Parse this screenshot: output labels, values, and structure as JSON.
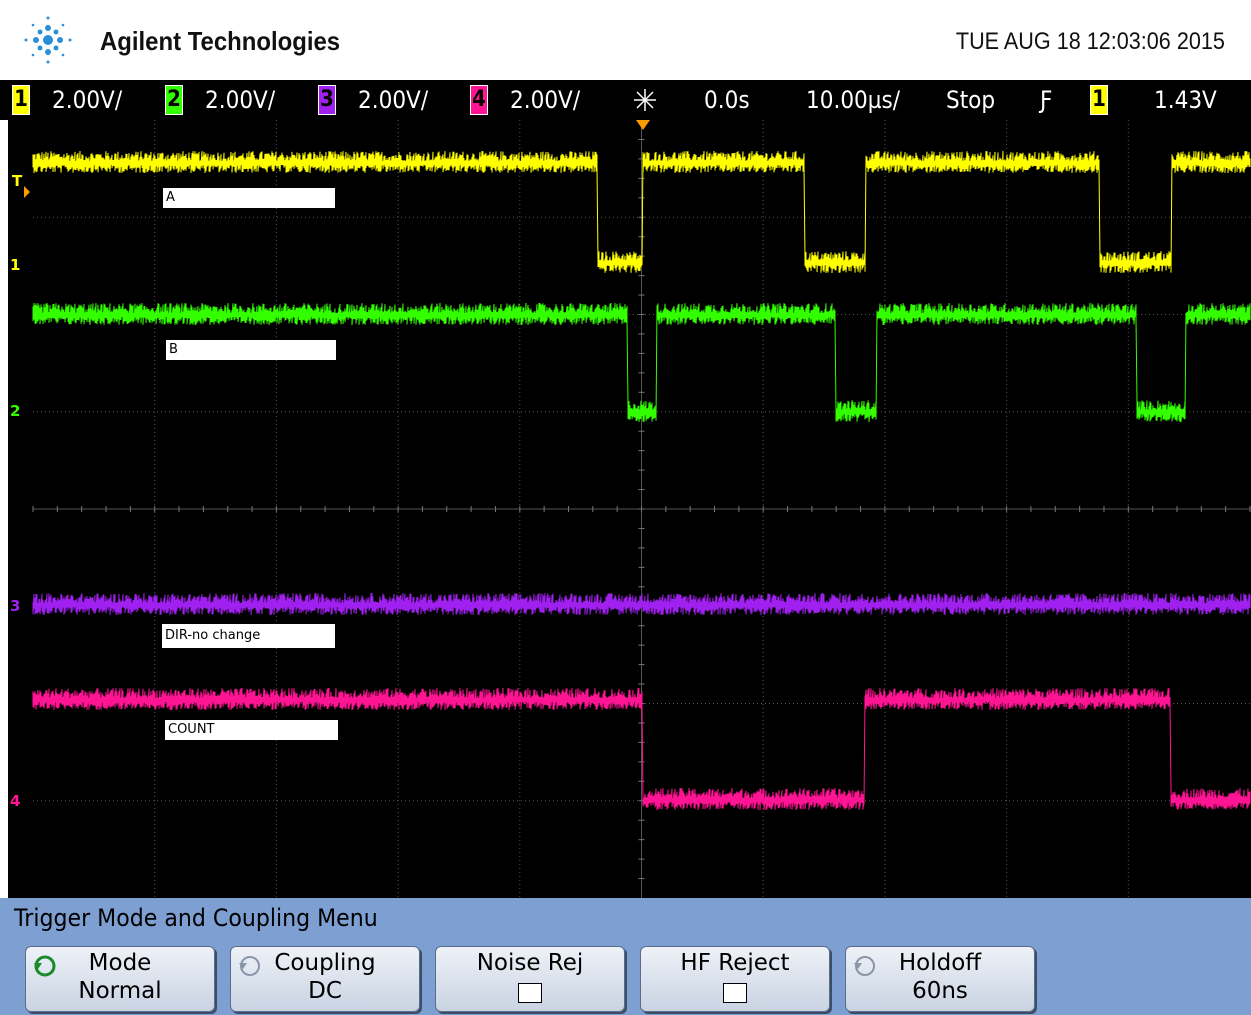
{
  "header": {
    "brand": "Agilent Technologies",
    "datetime": "TUE AUG 18 12:03:06 2015"
  },
  "status_bar": {
    "channels": [
      {
        "number": "1",
        "scale": "2.00V/"
      },
      {
        "number": "2",
        "scale": "2.00V/"
      },
      {
        "number": "3",
        "scale": "2.00V/"
      },
      {
        "number": "4",
        "scale": "2.00V/"
      }
    ],
    "delay": "0.0s",
    "timebase": "10.00µs/",
    "run_state": "Stop",
    "trigger_edge": "Ƒ",
    "trigger_source": "1",
    "trigger_level": "1.43V"
  },
  "screen": {
    "trigger_marker": "T",
    "channel_markers": [
      "1",
      "2",
      "3",
      "4"
    ],
    "labels": [
      "A",
      "B",
      "DIR-no change",
      "COUNT"
    ]
  },
  "menu": {
    "title": "Trigger Mode and Coupling Menu",
    "buttons": [
      {
        "label": "Mode",
        "value": "Normal"
      },
      {
        "label": "Coupling",
        "value": "DC"
      },
      {
        "label": "Noise Rej"
      },
      {
        "label": "HF Reject"
      },
      {
        "label": "Holdoff",
        "value": "60ns"
      }
    ]
  }
}
